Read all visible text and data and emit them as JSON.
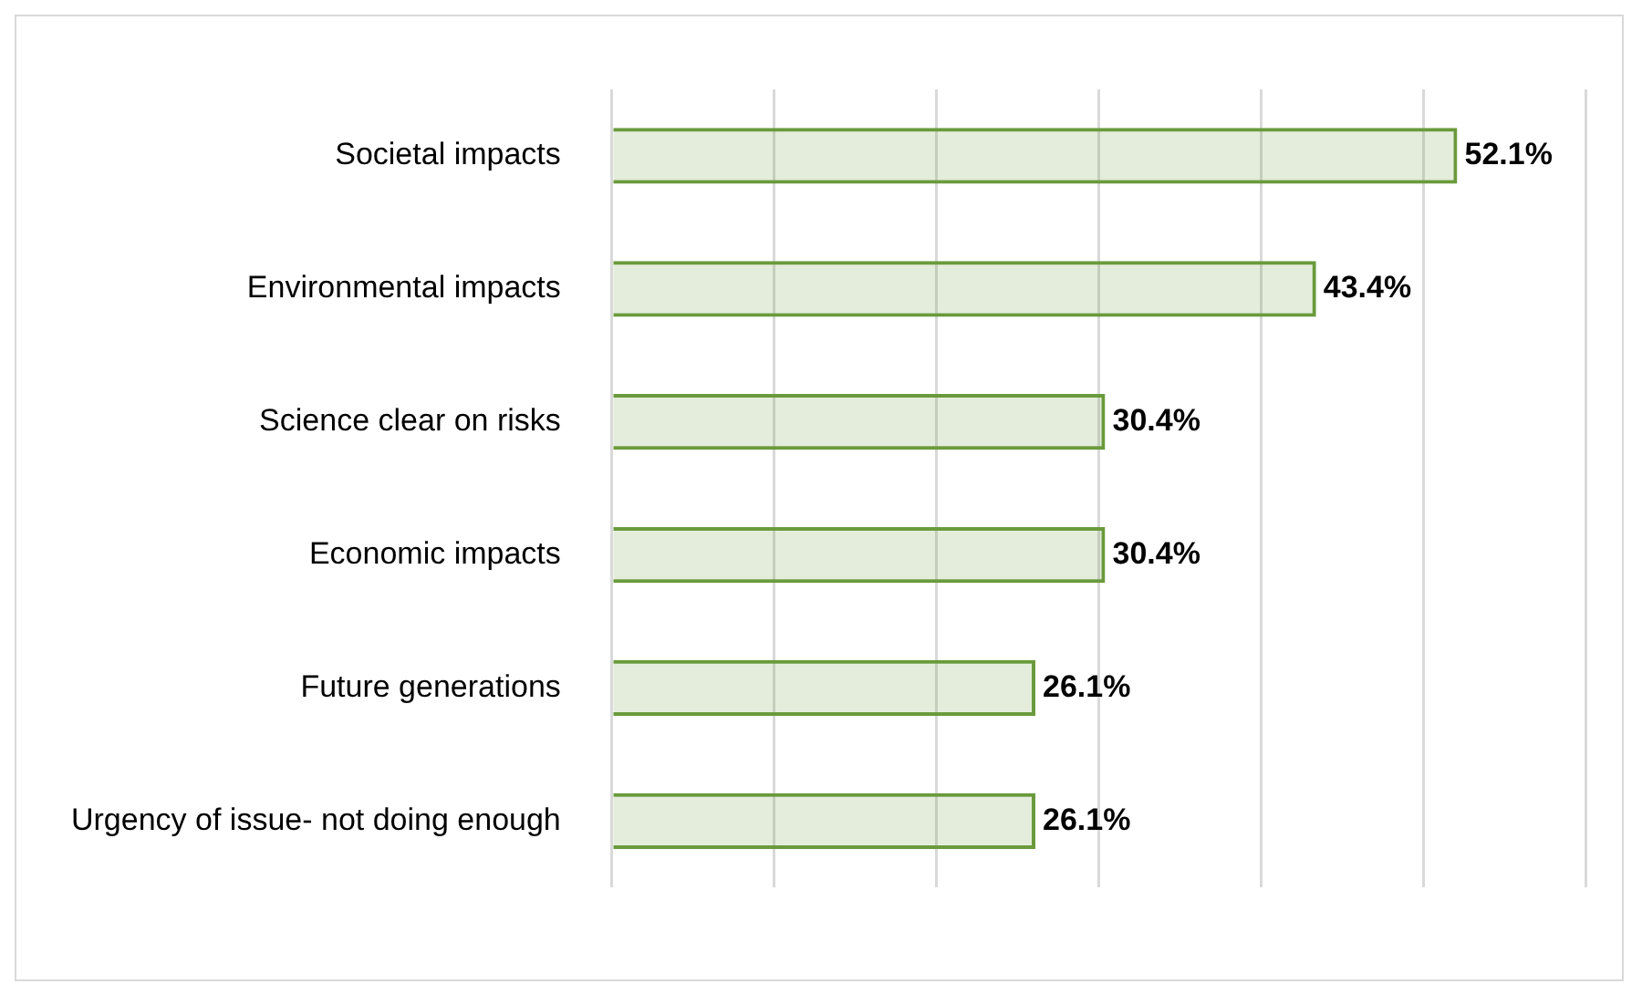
{
  "chart_data": {
    "type": "bar",
    "orientation": "horizontal",
    "categories": [
      "Societal impacts",
      "Environmental impacts",
      "Science clear on risks",
      "Economic impacts",
      "Future generations",
      "Urgency of issue- not doing enough"
    ],
    "values": [
      52.1,
      43.4,
      30.4,
      30.4,
      26.1,
      26.1
    ],
    "value_labels": [
      "52.1%",
      "43.4%",
      "30.4%",
      "30.4%",
      "26.1%",
      "26.1%"
    ],
    "color": "#6a9a3c",
    "xlim": [
      0,
      60
    ],
    "xticks": [
      {
        "value": 0,
        "label": null
      },
      {
        "value": 10,
        "label": null
      },
      {
        "value": 20,
        "label": null
      },
      {
        "value": 30,
        "label": null
      },
      {
        "value": 40,
        "label": null
      },
      {
        "value": 50,
        "label": null
      },
      {
        "value": 60,
        "label": null
      }
    ],
    "grid": "x"
  }
}
